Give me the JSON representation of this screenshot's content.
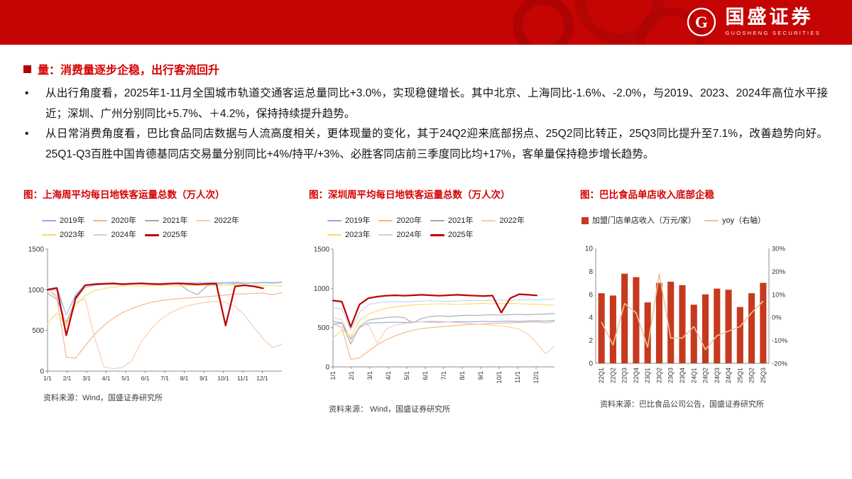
{
  "banner": {
    "brand_cn": "国盛证券",
    "brand_en": "GUOSHENG SECURITIES"
  },
  "headline": "量：消费量逐步企稳，出行客流回升",
  "bullet_marker": "•",
  "bullets": [
    "从出行角度看，2025年1-11月全国城市轨道交通客运总量同比+3.0%，实现稳健增长。其中北京、上海同比-1.6%、-2.0%，与2019、2023、2024年高位水平接近；深圳、广州分别同比+5.7%、＋4.2%，保持持续提升趋势。",
    "从日常消费角度看，巴比食品同店数据与人流高度相关，更体现量的变化，其于24Q2迎来底部拐点、25Q2同比转正，25Q3同比提升至7.1%，改善趋势向好。25Q1-Q3百胜中国肯德基同店交易量分别同比+4%/持平/+3%、必胜客同店前三季度同比均+17%，客单量保持稳步增长趋势。"
  ],
  "chart_data": [
    {
      "type": "line",
      "title": "图：上海周平均每日地铁客运量总数（万人次）",
      "source": "资料来源：Wind，国盛证券研究所",
      "ylim": [
        0,
        1500
      ],
      "yticks": [
        0,
        500,
        1000,
        1500
      ],
      "xticklabels": [
        "1/1",
        "2/1",
        "3/1",
        "4/1",
        "5/1",
        "6/1",
        "7/1",
        "8/1",
        "9/1",
        "10/1",
        "11/1",
        "12/1"
      ],
      "legend_position": "top",
      "grid": false,
      "series": [
        {
          "name": "2019年",
          "color": "#8faadc",
          "width": 1.1,
          "values": [
            1010,
            1030,
            690,
            930,
            1050,
            1065,
            1075,
            1080,
            1075,
            1080,
            1085,
            1080,
            1078,
            1082,
            1086,
            1083,
            1086,
            1090,
            1086,
            1090,
            1094,
            1090,
            1086,
            1092,
            1088,
            1095
          ]
        },
        {
          "name": "2020年",
          "color": "#f4b183",
          "width": 1.1,
          "values": [
            1020,
            900,
            170,
            160,
            310,
            450,
            560,
            650,
            720,
            770,
            810,
            845,
            865,
            880,
            890,
            900,
            905,
            915,
            925,
            935,
            945,
            950,
            955,
            960,
            940,
            965
          ]
        },
        {
          "name": "2021年",
          "color": "#a6a6a6",
          "width": 1.1,
          "values": [
            960,
            880,
            600,
            880,
            1030,
            1055,
            1065,
            1070,
            1060,
            1068,
            1075,
            1068,
            1062,
            1068,
            1075,
            990,
            940,
            1045,
            1070,
            1078,
            1072,
            1078,
            1082,
            1085,
            1078,
            1088
          ]
        },
        {
          "name": "2022年",
          "color": "#f8cbad",
          "width": 1.1,
          "values": [
            1005,
            930,
            580,
            840,
            890,
            420,
            55,
            30,
            45,
            130,
            360,
            510,
            630,
            710,
            765,
            805,
            830,
            848,
            858,
            845,
            795,
            690,
            540,
            400,
            290,
            330
          ]
        },
        {
          "name": "2023年",
          "color": "#ffd966",
          "width": 1.1,
          "values": [
            580,
            720,
            560,
            810,
            930,
            985,
            1015,
            1032,
            1042,
            1050,
            1046,
            1052,
            1056,
            1050,
            1046,
            1052,
            1056,
            1060,
            1052,
            1056,
            1060,
            1055,
            1050,
            1056,
            1050,
            1046
          ]
        },
        {
          "name": "2024年",
          "color": "#bdd7ee",
          "width": 1.1,
          "values": [
            1005,
            985,
            690,
            955,
            1058,
            1068,
            1074,
            1078,
            1074,
            1078,
            1083,
            1078,
            1074,
            1078,
            1083,
            1078,
            1074,
            1078,
            1083,
            1078,
            1083,
            1088,
            1078,
            1083,
            1078,
            1088
          ]
        },
        {
          "name": "2025年",
          "color": "#c00000",
          "width": 2.2,
          "values": [
            1000,
            1020,
            440,
            900,
            1055,
            1068,
            1074,
            1078,
            1068,
            1074,
            1078,
            1072,
            1068,
            1074,
            1078,
            1072,
            1066,
            1072,
            1076,
            560,
            1040,
            1055,
            1042,
            1018,
            null,
            null
          ]
        }
      ]
    },
    {
      "type": "line",
      "title": "图：深圳周平均每日地铁客运量总数（万人次）",
      "source": "资料来源：  Wind，国盛证券研究所",
      "ylim": [
        0,
        1500
      ],
      "yticks": [
        0,
        500,
        1000,
        1500
      ],
      "xticklabels": [
        "1/1",
        "2/1",
        "3/1",
        "4/1",
        "5/1",
        "6/1",
        "7/1",
        "8/1",
        "9/1",
        "10/1",
        "11/1",
        "12/1"
      ],
      "legend_position": "top",
      "grid": false,
      "series": [
        {
          "name": "2019年",
          "color": "#8faadc",
          "width": 1.1,
          "values": [
            545,
            555,
            360,
            500,
            558,
            562,
            566,
            570,
            566,
            570,
            574,
            570,
            568,
            572,
            576,
            572,
            576,
            580,
            576,
            580,
            584,
            580,
            584,
            588,
            584,
            590
          ]
        },
        {
          "name": "2020年",
          "color": "#f4b183",
          "width": 1.1,
          "values": [
            550,
            500,
            95,
            115,
            200,
            280,
            345,
            395,
            435,
            465,
            488,
            500,
            510,
            520,
            528,
            536,
            542,
            548,
            552,
            558,
            562,
            566,
            568,
            572,
            560,
            575
          ]
        },
        {
          "name": "2021年",
          "color": "#a6a6a6",
          "width": 1.1,
          "values": [
            580,
            560,
            290,
            515,
            595,
            615,
            628,
            638,
            628,
            560,
            615,
            642,
            650,
            642,
            650,
            658,
            654,
            660,
            664,
            660,
            665,
            670,
            665,
            670,
            674,
            680
          ]
        },
        {
          "name": "2022年",
          "color": "#f8cbad",
          "width": 1.1,
          "values": [
            630,
            600,
            340,
            520,
            540,
            300,
            480,
            530,
            552,
            565,
            575,
            585,
            580,
            572,
            565,
            556,
            548,
            540,
            530,
            520,
            505,
            480,
            420,
            300,
            170,
            260
          ]
        },
        {
          "name": "2023年",
          "color": "#ffd966",
          "width": 1.1,
          "values": [
            370,
            470,
            390,
            590,
            670,
            715,
            745,
            765,
            778,
            788,
            794,
            800,
            804,
            800,
            795,
            800,
            805,
            810,
            802,
            806,
            810,
            805,
            800,
            796,
            790,
            786
          ]
        },
        {
          "name": "2024年",
          "color": "#bdd7ee",
          "width": 1.1,
          "values": [
            755,
            738,
            470,
            695,
            795,
            815,
            826,
            832,
            828,
            832,
            838,
            842,
            838,
            833,
            838,
            843,
            848,
            843,
            848,
            853,
            848,
            853,
            858,
            853,
            858,
            862
          ]
        },
        {
          "name": "2025年",
          "color": "#c00000",
          "width": 2.2,
          "values": [
            845,
            830,
            510,
            795,
            875,
            895,
            906,
            912,
            906,
            912,
            918,
            912,
            906,
            912,
            918,
            912,
            906,
            902,
            908,
            690,
            875,
            925,
            918,
            910,
            null,
            null
          ]
        }
      ]
    },
    {
      "type": "bar",
      "title": "图：巴比食品单店收入底部企稳",
      "source": "资料来源：巴比食品公司公告，国盛证券研究所",
      "categories": [
        "22Q1",
        "22Q2",
        "22Q3",
        "22Q4",
        "23Q1",
        "23Q2",
        "23Q3",
        "23Q4",
        "24Q1",
        "24Q2",
        "24Q3",
        "24Q4",
        "25Q1",
        "25Q2",
        "25Q3"
      ],
      "bar": {
        "name": "加盟门店单店收入（万元/家）",
        "color": "#c53a1e",
        "values": [
          6.1,
          5.9,
          7.8,
          7.5,
          5.3,
          7.0,
          7.1,
          6.8,
          5.1,
          6.0,
          6.5,
          6.4,
          4.9,
          6.1,
          7.0
        ]
      },
      "line": {
        "name": "yoy（右轴）",
        "color": "#e8c79b",
        "values": [
          -2,
          -12,
          6,
          2,
          -13,
          19,
          -9,
          -9,
          -4,
          -14,
          -8,
          -6,
          -4,
          2,
          7.1
        ]
      },
      "ylim_left": [
        0,
        10
      ],
      "yticks_left": [
        0,
        2,
        4,
        6,
        8,
        10
      ],
      "ylim_right": [
        -20,
        30
      ],
      "yticks_right": [
        -20,
        -10,
        0,
        10,
        20,
        30
      ],
      "yticks_right_labels": [
        "-20%",
        "-10%",
        "0%",
        "10%",
        "20%",
        "30%"
      ],
      "legend_position": "top",
      "grid": false
    }
  ]
}
